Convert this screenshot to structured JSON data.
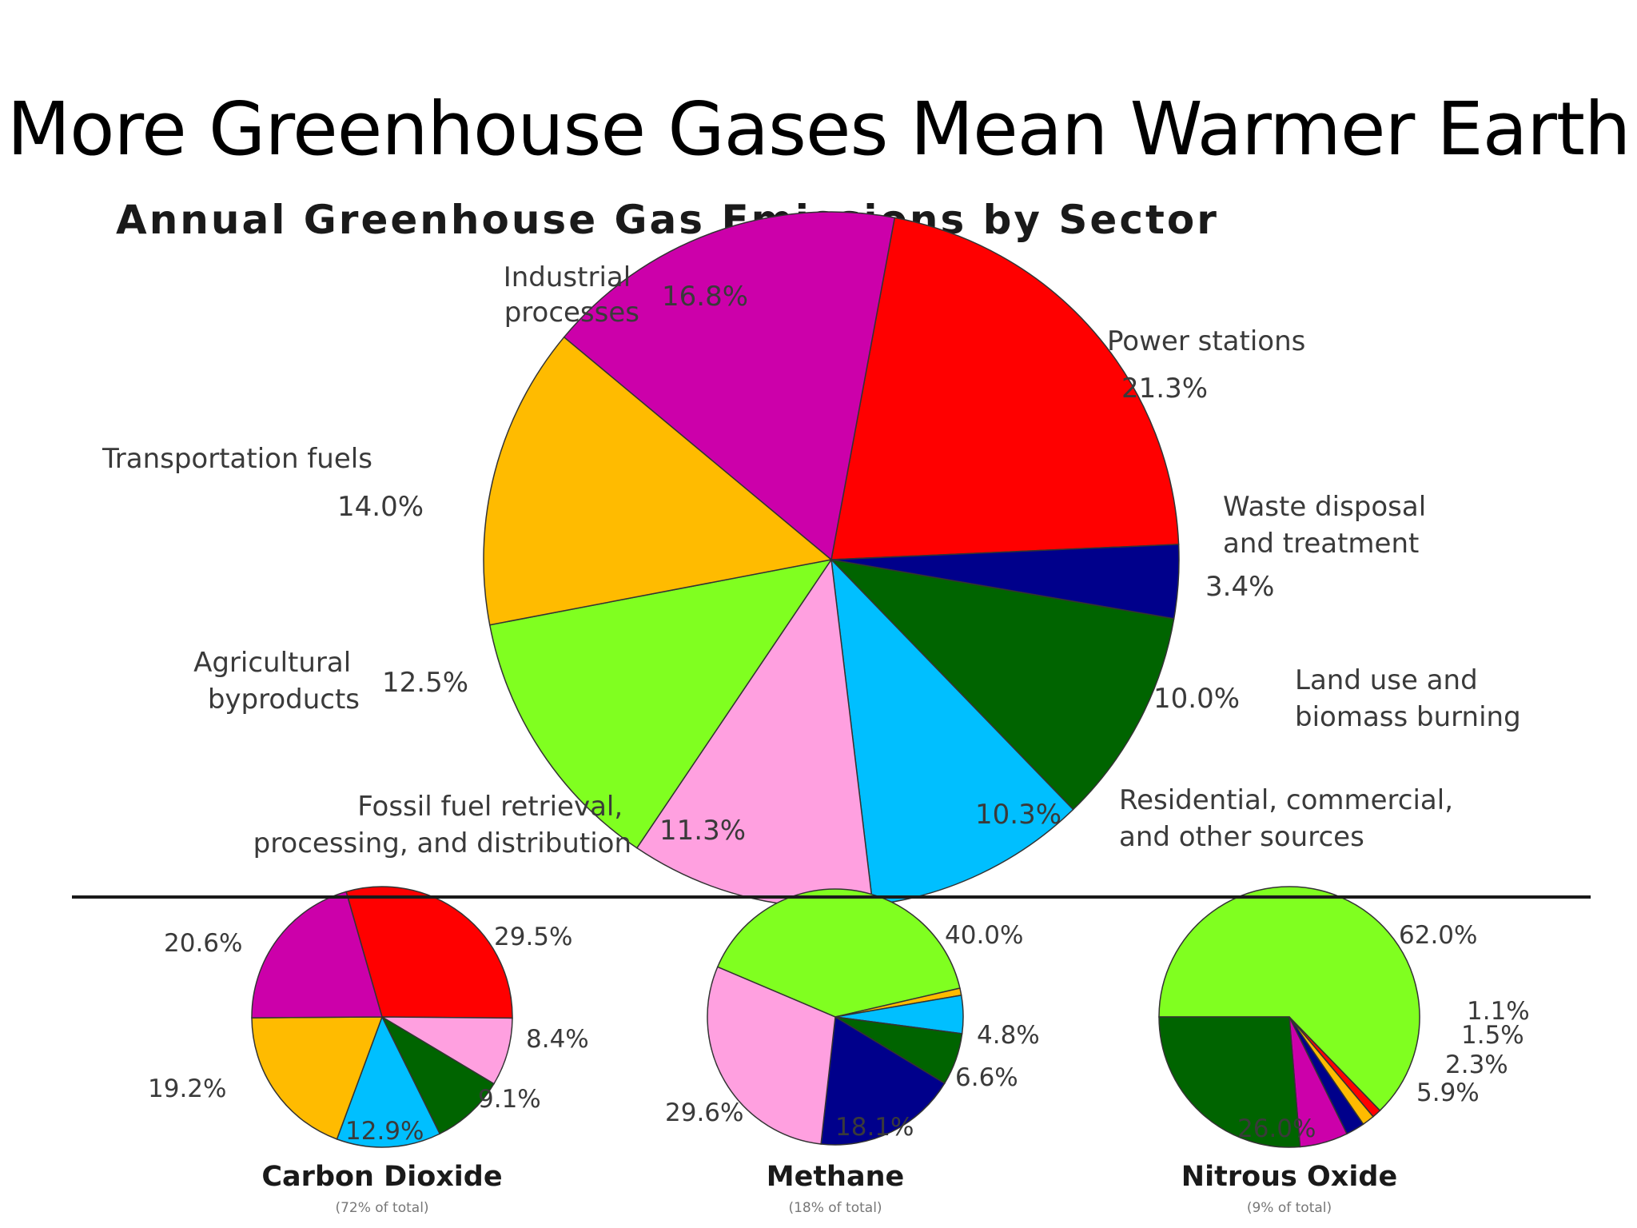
{
  "slide": {
    "title": "More Greenhouse Gases Mean Warmer Earth"
  },
  "chart_data": [
    {
      "type": "pie",
      "title": "Annual Greenhouse Gas Emissions by Sector",
      "slices": [
        {
          "name": "Power stations",
          "value": 21.3,
          "label": "21.3%",
          "color": "#ff0000"
        },
        {
          "name": "Waste disposal and treatment",
          "value": 3.4,
          "label": "3.4%",
          "color": "#00008b"
        },
        {
          "name": "Land use and biomass burning",
          "value": 10.0,
          "label": "10.0%",
          "color": "#006400"
        },
        {
          "name": "Residential, commercial, and other sources",
          "value": 10.3,
          "label": "10.3%",
          "color": "#00bfff"
        },
        {
          "name": "Fossil fuel retrieval, processing, and distribution",
          "value": 11.3,
          "label": "11.3%",
          "color": "#ffa0e0"
        },
        {
          "name": "Agricultural byproducts",
          "value": 12.5,
          "label": "12.5%",
          "color": "#80ff20"
        },
        {
          "name": "Transportation fuels",
          "value": 14.0,
          "label": "14.0%",
          "color": "#ffbb00"
        },
        {
          "name": "Industrial processes",
          "value": 16.8,
          "label": "16.8%",
          "color": "#cc00aa"
        }
      ]
    },
    {
      "type": "pie",
      "title": "Carbon Dioxide",
      "subtitle": "(72% of total)",
      "slices": [
        {
          "name": "Power stations",
          "value": 29.5,
          "label": "29.5%",
          "color": "#ff0000"
        },
        {
          "name": "Fossil fuel retrieval, processing, and distribution",
          "value": 8.4,
          "label": "8.4%",
          "color": "#ffa0e0"
        },
        {
          "name": "Land use and biomass burning",
          "value": 9.1,
          "label": "9.1%",
          "color": "#006400"
        },
        {
          "name": "Residential, commercial, and other sources",
          "value": 12.9,
          "label": "12.9%",
          "color": "#00bfff"
        },
        {
          "name": "Transportation fuels",
          "value": 19.2,
          "label": "19.2%",
          "color": "#ffbb00"
        },
        {
          "name": "Industrial processes",
          "value": 20.6,
          "label": "20.6%",
          "color": "#cc00aa"
        }
      ]
    },
    {
      "type": "pie",
      "title": "Methane",
      "subtitle": "(18% of total)",
      "slices": [
        {
          "name": "Agricultural byproducts",
          "value": 40.0,
          "label": "40.0%",
          "color": "#80ff20"
        },
        {
          "name": "Power stations",
          "value": 0.9,
          "label": "",
          "color": "#ffbb00"
        },
        {
          "name": "Residential, commercial, and other sources",
          "value": 4.8,
          "label": "4.8%",
          "color": "#00bfff"
        },
        {
          "name": "Land use and biomass burning",
          "value": 6.6,
          "label": "6.6%",
          "color": "#006400"
        },
        {
          "name": "Waste disposal and treatment",
          "value": 18.1,
          "label": "18.1%",
          "color": "#00008b"
        },
        {
          "name": "Fossil fuel retrieval, processing, and distribution",
          "value": 29.6,
          "label": "29.6%",
          "color": "#ffa0e0"
        }
      ]
    },
    {
      "type": "pie",
      "title": "Nitrous Oxide",
      "subtitle": "(9% of total)",
      "slices": [
        {
          "name": "Agricultural byproducts",
          "value": 62.0,
          "label": "62.0%",
          "color": "#80ff20"
        },
        {
          "name": "Power stations",
          "value": 1.1,
          "label": "1.1%",
          "color": "#ff0000"
        },
        {
          "name": "Transportation fuels",
          "value": 1.5,
          "label": "1.5%",
          "color": "#ffbb00"
        },
        {
          "name": "Waste disposal and treatment",
          "value": 2.3,
          "label": "2.3%",
          "color": "#00008b"
        },
        {
          "name": "Industrial processes",
          "value": 5.9,
          "label": "5.9%",
          "color": "#cc00aa"
        },
        {
          "name": "Land use and biomass burning",
          "value": 26.0,
          "label": "26.0%",
          "color": "#006400"
        }
      ]
    }
  ]
}
